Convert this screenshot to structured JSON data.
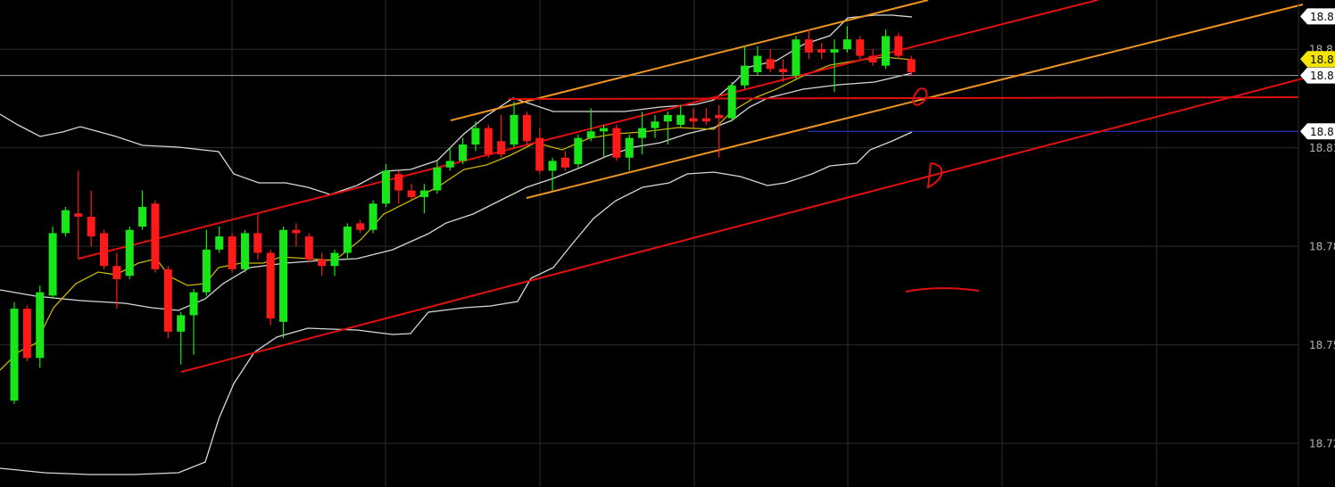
{
  "chart_data": {
    "type": "candlestick",
    "open": [
      18.733,
      18.761,
      18.746,
      18.765,
      18.784,
      18.79,
      18.789,
      18.784,
      18.774,
      18.771,
      18.786,
      18.793,
      18.773,
      18.754,
      18.759,
      18.766,
      18.779,
      18.783,
      18.773,
      18.784,
      18.778,
      18.757,
      18.785,
      18.783,
      18.776,
      18.774,
      18.778,
      18.787,
      18.785,
      18.793,
      18.802,
      18.797,
      18.795,
      18.797,
      18.804,
      18.806,
      18.811,
      18.816,
      18.812,
      18.811,
      18.82,
      18.813,
      18.803,
      18.807,
      18.805,
      18.813,
      18.815,
      18.816,
      18.807,
      18.813,
      18.816,
      18.818,
      18.817,
      18.819,
      18.819,
      18.82,
      18.819,
      18.829,
      18.833,
      18.837,
      18.834,
      18.832,
      18.843,
      18.84,
      18.839,
      18.84,
      18.843,
      18.838,
      18.835,
      18.844,
      18.837
    ],
    "high": [
      18.763,
      18.762,
      18.768,
      18.786,
      18.792,
      18.803,
      18.797,
      18.785,
      18.778,
      18.786,
      18.797,
      18.794,
      18.774,
      18.76,
      18.767,
      18.785,
      18.786,
      18.784,
      18.785,
      18.79,
      18.779,
      18.786,
      18.787,
      18.784,
      18.778,
      18.779,
      18.787,
      18.788,
      18.794,
      18.805,
      18.803,
      18.799,
      18.799,
      18.806,
      18.81,
      18.813,
      18.818,
      18.817,
      18.82,
      18.824,
      18.821,
      18.816,
      18.807,
      18.809,
      18.814,
      18.822,
      18.817,
      18.817,
      18.814,
      18.821,
      18.82,
      18.821,
      18.823,
      18.822,
      18.822,
      18.823,
      18.83,
      18.841,
      18.841,
      18.84,
      18.837,
      18.844,
      18.846,
      18.842,
      18.843,
      18.847,
      18.844,
      18.84,
      18.846,
      18.845,
      18.838
    ],
    "low": [
      18.732,
      18.745,
      18.743,
      18.764,
      18.783,
      18.776,
      18.78,
      18.773,
      18.761,
      18.77,
      18.785,
      18.772,
      18.752,
      18.744,
      18.747,
      18.765,
      18.778,
      18.772,
      18.772,
      18.776,
      18.756,
      18.752,
      18.78,
      18.775,
      18.771,
      18.771,
      18.776,
      18.784,
      18.784,
      18.792,
      18.793,
      18.794,
      18.79,
      18.796,
      18.803,
      18.805,
      18.809,
      18.807,
      18.807,
      18.81,
      18.811,
      18.802,
      18.797,
      18.803,
      18.804,
      18.812,
      18.807,
      18.806,
      18.803,
      18.808,
      18.813,
      18.811,
      18.816,
      18.816,
      18.817,
      18.807,
      18.818,
      18.828,
      18.832,
      18.833,
      18.83,
      18.831,
      18.837,
      18.837,
      18.827,
      18.839,
      18.837,
      18.835,
      18.834,
      18.837,
      18.832
    ],
    "close": [
      18.761,
      18.746,
      18.766,
      18.784,
      18.791,
      18.789,
      18.783,
      18.774,
      18.77,
      18.785,
      18.792,
      18.773,
      18.754,
      18.759,
      18.766,
      18.779,
      18.783,
      18.773,
      18.784,
      18.778,
      18.758,
      18.785,
      18.784,
      18.776,
      18.774,
      18.778,
      18.786,
      18.785,
      18.793,
      18.803,
      18.797,
      18.795,
      18.797,
      18.804,
      18.806,
      18.811,
      18.816,
      18.808,
      18.808,
      18.82,
      18.812,
      18.803,
      18.806,
      18.804,
      18.813,
      18.815,
      18.816,
      18.807,
      18.813,
      18.816,
      18.818,
      18.82,
      18.82,
      18.818,
      18.818,
      18.819,
      18.829,
      18.835,
      18.838,
      18.834,
      18.833,
      18.843,
      18.839,
      18.839,
      18.84,
      18.843,
      18.838,
      18.836,
      18.844,
      18.838,
      18.833
    ],
    "up_color": "#19e619",
    "down_color": "#ff1a1a",
    "ylim": [
      18.7067,
      18.855
    ],
    "yticks": [
      18.72,
      18.75,
      18.78,
      18.81,
      {
        "value": 18.84,
        "label": "18.8"
      }
    ],
    "grid": true,
    "price_tags": [
      {
        "value": 18.85,
        "label": "18.8",
        "color": "#ffffff"
      },
      {
        "value": 18.837,
        "label": "18.8",
        "color": "#f5e400"
      },
      {
        "value": 18.832,
        "label": "18.8",
        "color": "#ffffff",
        "line": "#a0a0a0"
      },
      {
        "value": 18.815,
        "label": "18.8",
        "color": "#ffffff",
        "line": "#2840d8"
      }
    ]
  }
}
